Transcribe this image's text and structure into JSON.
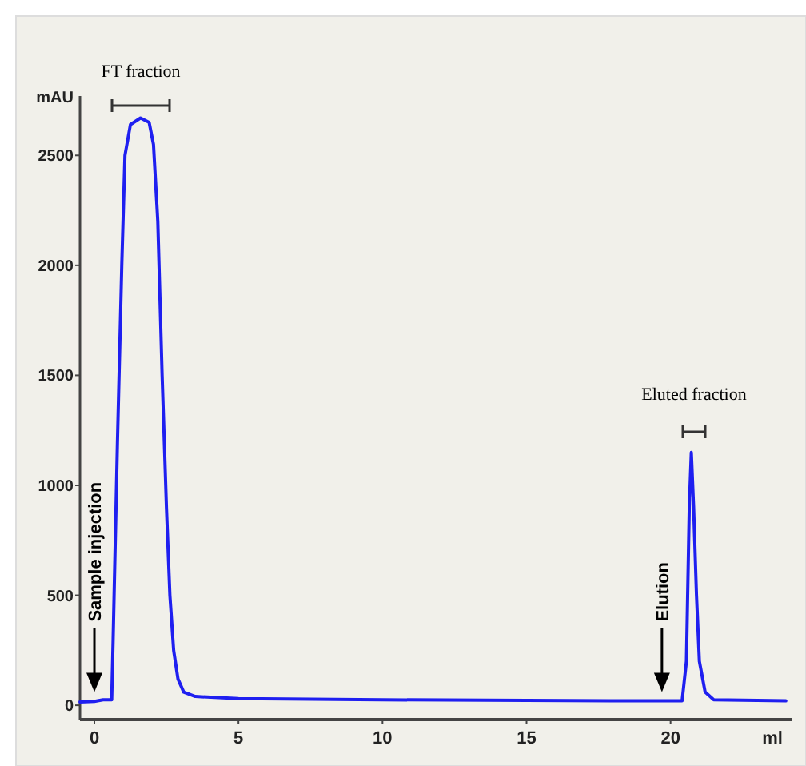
{
  "chart_data": {
    "type": "line",
    "ylabel": "mAU",
    "xlabel": "ml",
    "xlim": [
      -0.5,
      24.2
    ],
    "ylim": [
      -65,
      2770
    ],
    "xticks": [
      0,
      5,
      10,
      15,
      20
    ],
    "yticks": [
      0,
      500,
      1000,
      1500,
      2000,
      2500
    ],
    "grid": false,
    "line_style": "solid",
    "series": [
      {
        "color": "#1f1ff0",
        "x": [
          -0.5,
          0,
          0.3,
          0.6,
          0.65,
          0.8,
          0.95,
          1.06,
          1.25,
          1.6,
          1.9,
          2.05,
          2.2,
          2.35,
          2.5,
          2.62,
          2.75,
          2.9,
          3.1,
          3.5,
          5,
          10,
          15,
          20,
          20.4,
          20.55,
          20.65,
          20.72,
          20.8,
          20.9,
          21.0,
          21.2,
          21.5,
          24
        ],
        "values": [
          15,
          18,
          25,
          25,
          300,
          1200,
          2000,
          2500,
          2640,
          2670,
          2650,
          2550,
          2200,
          1500,
          900,
          500,
          250,
          120,
          60,
          40,
          30,
          25,
          22,
          20,
          20,
          200,
          900,
          1150,
          900,
          500,
          200,
          60,
          25,
          20
        ]
      }
    ],
    "annotations": [
      "FT fraction",
      "Eluted fraction",
      {
        "text": "Sample injection",
        "x": 0,
        "y": 60
      },
      {
        "text": "Elution",
        "x": 19.7,
        "y": 60
      }
    ]
  }
}
